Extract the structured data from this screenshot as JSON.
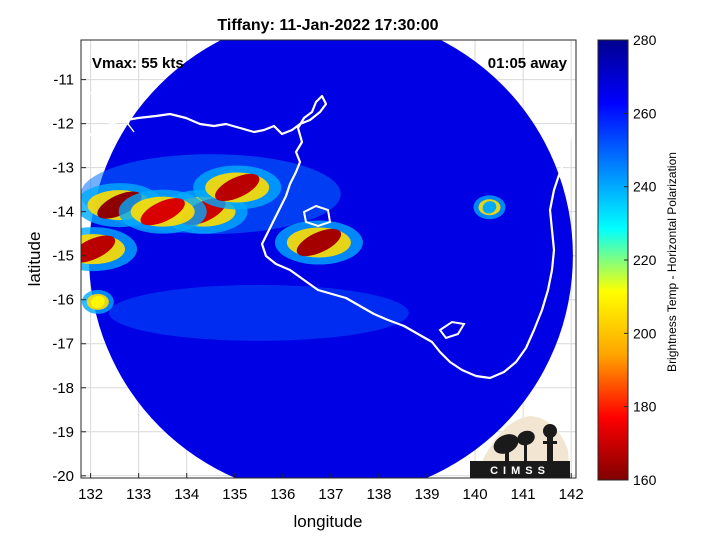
{
  "chart_data": {
    "type": "heatmap",
    "title": "Tiffany: 11-Jan-2022 17:30:00",
    "xlabel": "longitude",
    "ylabel": "latitude",
    "xlim": [
      131.8,
      142.1
    ],
    "ylim": [
      -20.05,
      -10.1
    ],
    "xticks": [
      "132",
      "133",
      "134",
      "135",
      "136",
      "137",
      "138",
      "139",
      "140",
      "141",
      "142"
    ],
    "yticks": [
      "-11",
      "-12",
      "-13",
      "-14",
      "-15",
      "-16",
      "-17",
      "-18",
      "-19",
      "-20"
    ],
    "grid": true,
    "annotations": {
      "vmax": "Vmax: 55 kts",
      "time_offset": "01:05 away"
    },
    "colorbar": {
      "label": "Brightness Temp - Horizontal Polarization",
      "range": [
        160,
        280
      ],
      "ticks": [
        "160",
        "180",
        "200",
        "220",
        "240",
        "260",
        "280"
      ],
      "colors": [
        "#800000",
        "#ff0000",
        "#ffa500",
        "#ffff00",
        "#00ffff",
        "#0080ff",
        "#0000ff",
        "#00008f"
      ]
    },
    "swath": {
      "center_lon": 137.0,
      "center_lat": -15.0,
      "background_value": 267,
      "features": [
        {
          "lon": 132.6,
          "lat": -13.85,
          "value": 162
        },
        {
          "lon": 132.05,
          "lat": -14.85,
          "value": 168
        },
        {
          "lon": 134.35,
          "lat": -14.0,
          "value": 170
        },
        {
          "lon": 135.05,
          "lat": -13.45,
          "value": 168
        },
        {
          "lon": 133.5,
          "lat": -14.0,
          "value": 172
        },
        {
          "lon": 136.75,
          "lat": -14.7,
          "value": 165
        },
        {
          "lon": 132.15,
          "lat": -16.05,
          "value": 210
        },
        {
          "lon": 140.3,
          "lat": -13.9,
          "value": 240
        }
      ]
    },
    "logo": "CIMSS"
  }
}
